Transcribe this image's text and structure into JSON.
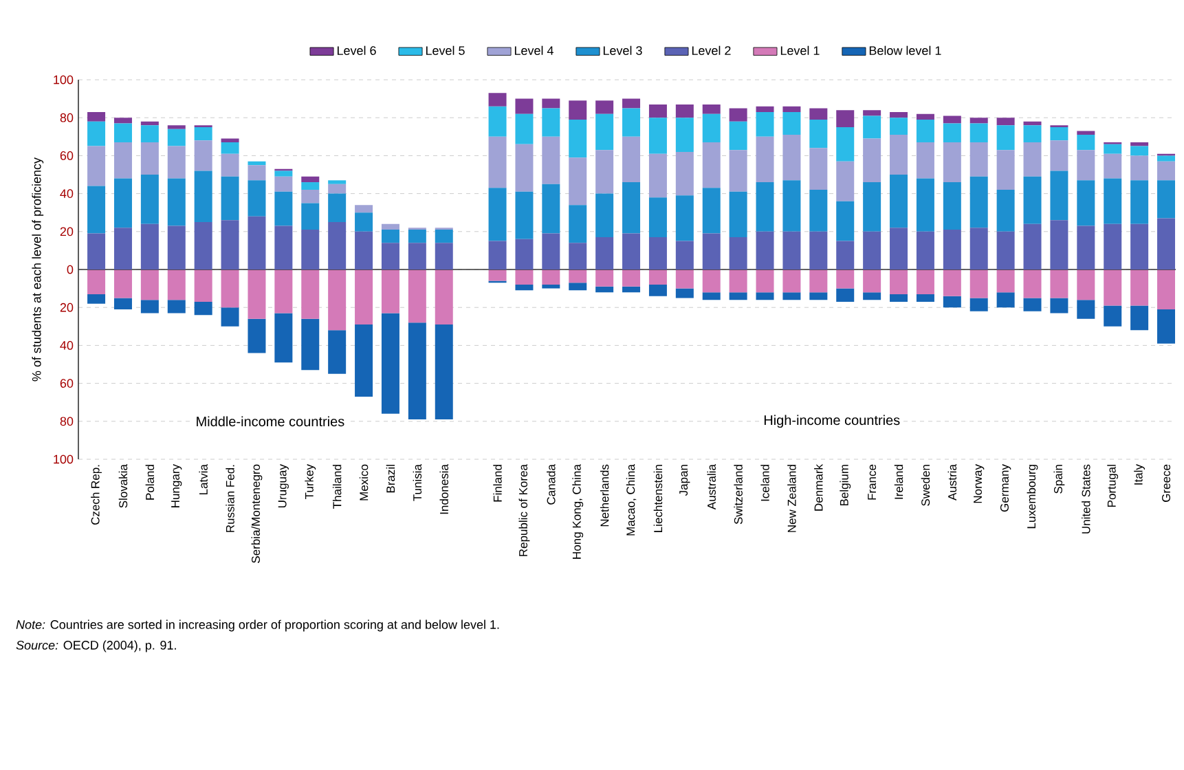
{
  "chart_data": {
    "type": "bar",
    "stacked": true,
    "ylabel": "% of students at each level of proficiency",
    "categories": [
      "Czech Rep.",
      "Slovakia",
      "Poland",
      "Hungary",
      "Latvia",
      "Russian Fed.",
      "Serbia/Montenegro",
      "Uruguay",
      "Turkey",
      "Thailand",
      "Mexico",
      "Brazil",
      "Tunisia",
      "Indonesia",
      null,
      "Finland",
      "Republic of Korea",
      "Canada",
      "Hong Kong, China",
      "Netherlands",
      "Macao, China",
      "Liechtenstein",
      "Japan",
      "Australia",
      "Switzerland",
      "Iceland",
      "New Zealand",
      "Denmark",
      "Belgium",
      "France",
      "Ireland",
      "Sweden",
      "Austria",
      "Norway",
      "Germany",
      "Luxembourg",
      "Spain",
      "United States",
      "Portugal",
      "Italy",
      "Greece"
    ],
    "series": [
      {
        "name": "Level 2",
        "color": "#5b63b5",
        "values": [
          19,
          22,
          24,
          23,
          25,
          26,
          28,
          23,
          21,
          25,
          20,
          14,
          14,
          14,
          null,
          15,
          16,
          19,
          14,
          17,
          19,
          17,
          15,
          19,
          17,
          20,
          20,
          20,
          15,
          20,
          22,
          20,
          21,
          22,
          20,
          24,
          26,
          23,
          24,
          24,
          27
        ]
      },
      {
        "name": "Level 3",
        "color": "#1e90d0",
        "values": [
          25,
          26,
          26,
          25,
          27,
          23,
          19,
          18,
          14,
          15,
          10,
          7,
          7,
          7,
          null,
          28,
          25,
          26,
          20,
          23,
          27,
          21,
          24,
          24,
          24,
          26,
          27,
          22,
          21,
          26,
          28,
          28,
          25,
          27,
          22,
          25,
          26,
          24,
          24,
          23,
          20
        ]
      },
      {
        "name": "Level 4",
        "color": "#a0a3d6",
        "values": [
          21,
          19,
          17,
          17,
          16,
          12,
          8,
          8,
          7,
          5,
          4,
          3,
          1,
          1,
          null,
          27,
          25,
          25,
          25,
          23,
          24,
          23,
          23,
          24,
          22,
          24,
          24,
          22,
          21,
          23,
          21,
          19,
          21,
          18,
          21,
          18,
          16,
          16,
          13,
          13,
          10
        ]
      },
      {
        "name": "Level 5",
        "color": "#2bbbe8",
        "values": [
          13,
          10,
          9,
          9,
          7,
          6,
          2,
          3,
          4,
          2,
          0,
          0,
          0,
          0,
          null,
          16,
          16,
          15,
          20,
          19,
          15,
          19,
          18,
          15,
          15,
          13,
          12,
          15,
          18,
          12,
          9,
          12,
          10,
          10,
          13,
          9,
          7,
          8,
          5,
          5,
          3
        ]
      },
      {
        "name": "Level 6",
        "color": "#7d3c98",
        "values": [
          5,
          3,
          2,
          2,
          1,
          2,
          0,
          1,
          3,
          0,
          0,
          0,
          0,
          0,
          null,
          7,
          8,
          5,
          10,
          7,
          5,
          7,
          7,
          5,
          7,
          3,
          3,
          6,
          9,
          3,
          3,
          3,
          4,
          3,
          4,
          2,
          1,
          2,
          1,
          2,
          1
        ]
      },
      {
        "name": "Level 1",
        "color": "#d47ab8",
        "values": [
          -13,
          -15,
          -16,
          -16,
          -17,
          -20,
          -26,
          -23,
          -26,
          -32,
          -29,
          -23,
          -28,
          -29,
          null,
          -6,
          -8,
          -8,
          -7,
          -9,
          -9,
          -8,
          -10,
          -12,
          -12,
          -12,
          -12,
          -12,
          -10,
          -12,
          -13,
          -13,
          -14,
          -15,
          -12,
          -15,
          -15,
          -16,
          -19,
          -19,
          -21
        ]
      },
      {
        "name": "Below level 1",
        "color": "#1565b5",
        "values": [
          -5,
          -6,
          -7,
          -7,
          -7,
          -10,
          -18,
          -26,
          -27,
          -23,
          -38,
          -53,
          -51,
          -50,
          null,
          -1,
          -3,
          -2,
          -4,
          -3,
          -3,
          -6,
          -5,
          -4,
          -4,
          -4,
          -4,
          -4,
          -7,
          -4,
          -4,
          -4,
          -6,
          -7,
          -8,
          -7,
          -8,
          -10,
          -11,
          -13,
          -18
        ]
      }
    ],
    "ylim": [
      -100,
      100
    ],
    "yticks": [
      {
        "value": -100,
        "label": "100"
      },
      {
        "value": -80,
        "label": "80"
      },
      {
        "value": -60,
        "label": "60"
      },
      {
        "value": -40,
        "label": "40"
      },
      {
        "value": -20,
        "label": "20"
      },
      0,
      20,
      40,
      60,
      80,
      100
    ],
    "grid": "y",
    "legend": "top",
    "annotations": [
      "Middle-income countries",
      "High-income countries",
      "*Note:* Countries are sorted in increasing order of proportion scoring at and below level 1.",
      "*Source:* OECD (2004), p. 91."
    ]
  }
}
